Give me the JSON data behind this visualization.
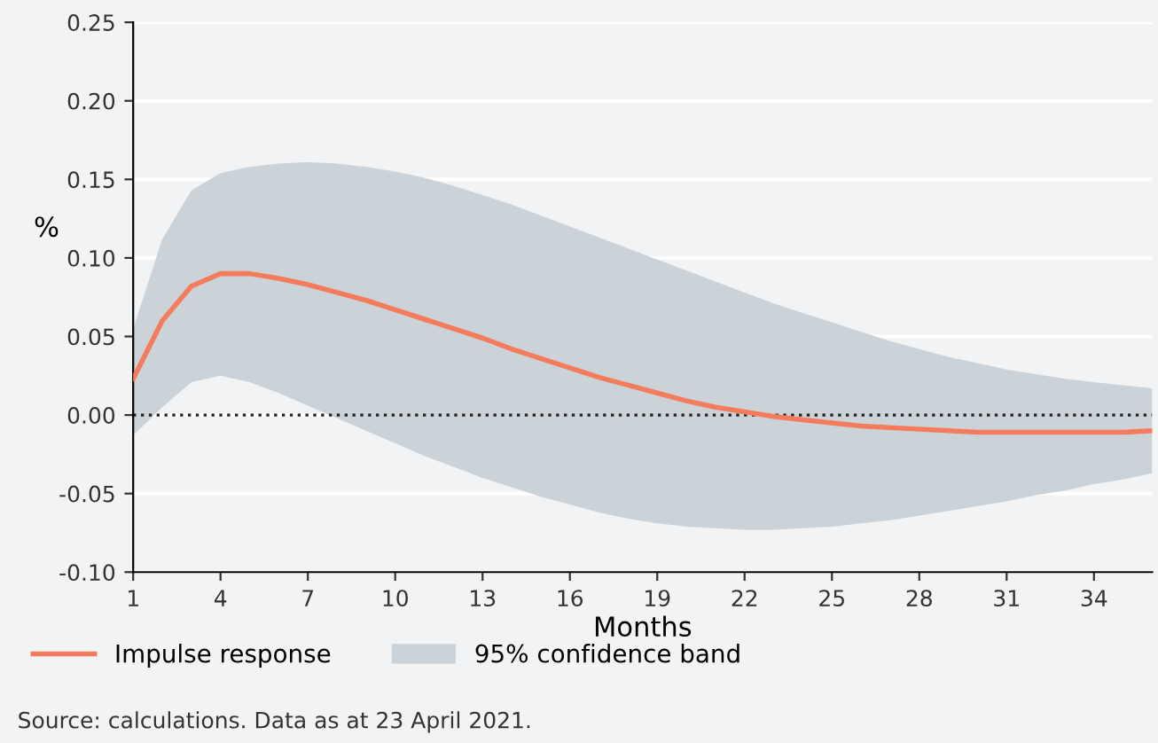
{
  "chart_data": {
    "type": "line",
    "xlabel": "Months",
    "ylabel": "%",
    "x": [
      1,
      2,
      3,
      4,
      5,
      6,
      7,
      8,
      9,
      10,
      11,
      12,
      13,
      14,
      15,
      16,
      17,
      18,
      19,
      20,
      21,
      22,
      23,
      24,
      25,
      26,
      27,
      28,
      29,
      30,
      31,
      32,
      33,
      34,
      35,
      36
    ],
    "series": [
      {
        "name": "Impulse response",
        "color": "#f47c5c",
        "values": [
          0.023,
          0.06,
          0.082,
          0.09,
          0.09,
          0.087,
          0.083,
          0.078,
          0.073,
          0.067,
          0.061,
          0.055,
          0.049,
          0.042,
          0.036,
          0.03,
          0.024,
          0.019,
          0.014,
          0.009,
          0.005,
          0.002,
          -0.001,
          -0.003,
          -0.005,
          -0.007,
          -0.008,
          -0.009,
          -0.01,
          -0.011,
          -0.011,
          -0.011,
          -0.011,
          -0.011,
          -0.011,
          -0.01
        ],
        "lower": [
          -0.013,
          0.005,
          0.021,
          0.025,
          0.021,
          0.014,
          0.006,
          -0.002,
          -0.01,
          -0.018,
          -0.026,
          -0.033,
          -0.04,
          -0.046,
          -0.052,
          -0.057,
          -0.062,
          -0.066,
          -0.069,
          -0.071,
          -0.072,
          -0.073,
          -0.073,
          -0.072,
          -0.071,
          -0.069,
          -0.067,
          -0.064,
          -0.061,
          -0.058,
          -0.055,
          -0.051,
          -0.048,
          -0.044,
          -0.041,
          -0.037
        ],
        "upper": [
          0.055,
          0.112,
          0.143,
          0.154,
          0.158,
          0.16,
          0.161,
          0.16,
          0.158,
          0.155,
          0.151,
          0.146,
          0.14,
          0.134,
          0.127,
          0.12,
          0.113,
          0.106,
          0.099,
          0.092,
          0.085,
          0.078,
          0.071,
          0.065,
          0.059,
          0.053,
          0.047,
          0.042,
          0.037,
          0.033,
          0.029,
          0.026,
          0.023,
          0.021,
          0.019,
          0.017
        ]
      }
    ],
    "xlim": [
      1,
      36
    ],
    "xticks": [
      1,
      4,
      7,
      10,
      13,
      16,
      19,
      22,
      25,
      28,
      31,
      34
    ],
    "ylim": [
      -0.1,
      0.25
    ],
    "yticks": [
      {
        "value": -0.1,
        "label": "-0.10"
      },
      {
        "value": -0.05,
        "label": "-0.05"
      },
      {
        "value": 0,
        "label": "0.00"
      },
      {
        "value": 0.05,
        "label": "0.05"
      },
      {
        "value": 0.1,
        "label": "0.10"
      },
      {
        "value": 0.15,
        "label": "0.15"
      },
      {
        "value": 0.2,
        "label": "0.20"
      },
      {
        "value": 0.25,
        "label": "0.25"
      }
    ],
    "ref_lines": [
      {
        "axis": "y",
        "value": 0,
        "color": "#222222",
        "line_style": "dotted"
      }
    ],
    "grid": "y",
    "legend": "bottom left",
    "marker": "none",
    "line_style": "solid",
    "annotations": [
      "95% confidence band",
      "Source: calculations. Data as at 23 April 2021."
    ]
  }
}
